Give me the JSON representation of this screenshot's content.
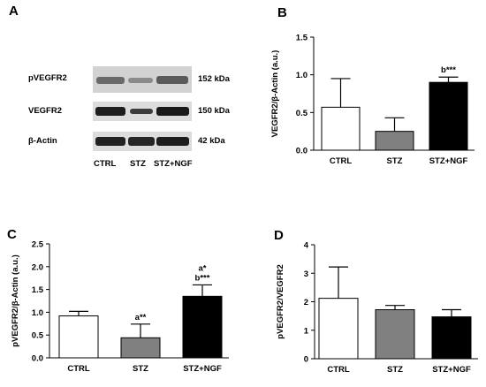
{
  "panels": {
    "a": "A",
    "b": "B",
    "c": "C",
    "d": "D"
  },
  "blot": {
    "rows": [
      {
        "label": "pVEGFR2",
        "kda": "152 kDa"
      },
      {
        "label": "VEGFR2",
        "kda": "150 kDa"
      },
      {
        "label": "β-Actin",
        "kda": "42 kDa"
      }
    ],
    "lanes": [
      "CTRL",
      "STZ",
      "STZ+NGF"
    ]
  },
  "colors": {
    "ctrl": "#ffffff",
    "stz": "#808080",
    "ngf": "#000000"
  },
  "chart_data": [
    {
      "panel": "B",
      "type": "bar",
      "categories": [
        "CTRL",
        "STZ",
        "STZ+NGF"
      ],
      "values": [
        0.57,
        0.25,
        0.9
      ],
      "errors": [
        0.38,
        0.18,
        0.07
      ],
      "ylabel": "VEGFR2/β-Actin (a.u.)",
      "ylim": [
        0,
        1.5
      ],
      "yticks": [
        "0.0",
        "0.5",
        "1.0",
        "1.5"
      ],
      "annotations": [
        "",
        "",
        "b***"
      ]
    },
    {
      "panel": "C",
      "type": "bar",
      "categories": [
        "CTRL",
        "STZ",
        "STZ+NGF"
      ],
      "values": [
        0.92,
        0.44,
        1.35
      ],
      "errors": [
        0.1,
        0.3,
        0.25
      ],
      "ylabel": "pVEGFR2/β-Actin (a.u.)",
      "ylim": [
        0,
        2.5
      ],
      "yticks": [
        "0.0",
        "0.5",
        "1.0",
        "1.5",
        "2.0",
        "2.5"
      ],
      "annotations": [
        "",
        "a**",
        "a*\nb***"
      ]
    },
    {
      "panel": "D",
      "type": "bar",
      "categories": [
        "CTRL",
        "STZ",
        "STZ+NGF"
      ],
      "values": [
        2.12,
        1.72,
        1.47
      ],
      "errors": [
        1.1,
        0.15,
        0.25
      ],
      "ylabel": "pVEGFR2/VEGFR2",
      "ylim": [
        0,
        4
      ],
      "yticks": [
        "0",
        "1",
        "2",
        "3",
        "4"
      ],
      "annotations": [
        "",
        "",
        ""
      ]
    }
  ]
}
